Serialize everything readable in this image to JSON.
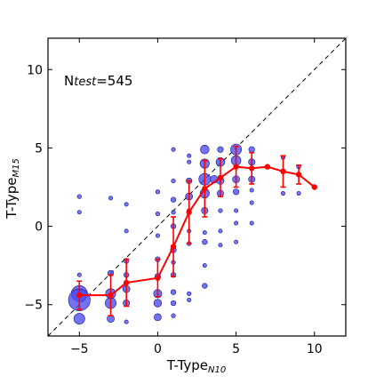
{
  "chart_data": {
    "type": "scatter",
    "xlabel_main": "T-Type",
    "xlabel_sub": "N10",
    "ylabel_main": "T-Type",
    "ylabel_sub": "M15",
    "annotation": {
      "n": "N",
      "sub": "test",
      "value": "=545"
    },
    "xlim": [
      -7,
      12
    ],
    "ylim": [
      -7,
      12
    ],
    "xticks": [
      -5,
      0,
      5,
      10
    ],
    "yticks": [
      -5,
      0,
      5,
      10
    ],
    "xtick_labels": [
      "−5",
      "0",
      "5",
      "10"
    ],
    "ytick_labels": [
      "−5",
      "0",
      "5",
      "10"
    ],
    "identity_line": true,
    "colors": {
      "points": "#4a4af0",
      "points_edge": "#1a1a8a",
      "mean": "#ff0000",
      "identity": "#000000"
    },
    "points": [
      {
        "x": -5,
        "y": 1.9,
        "n": 2
      },
      {
        "x": -5,
        "y": 0.9,
        "n": 1
      },
      {
        "x": -5,
        "y": -3.1,
        "n": 1
      },
      {
        "x": -5,
        "y": -4.3,
        "n": 30
      },
      {
        "x": -5,
        "y": -4.7,
        "n": 55
      },
      {
        "x": -5,
        "y": -5.9,
        "n": 14
      },
      {
        "x": -3,
        "y": 1.8,
        "n": 1
      },
      {
        "x": -3,
        "y": -3.0,
        "n": 4
      },
      {
        "x": -3,
        "y": -4.3,
        "n": 12
      },
      {
        "x": -3,
        "y": -4.9,
        "n": 14
      },
      {
        "x": -3,
        "y": -5.9,
        "n": 6
      },
      {
        "x": -2,
        "y": 1.4,
        "n": 1
      },
      {
        "x": -2,
        "y": -0.3,
        "n": 1
      },
      {
        "x": -2,
        "y": -2.2,
        "n": 3
      },
      {
        "x": -2,
        "y": -3.1,
        "n": 3
      },
      {
        "x": -2,
        "y": -4.0,
        "n": 6
      },
      {
        "x": -2,
        "y": -4.9,
        "n": 5
      },
      {
        "x": -2,
        "y": -6.1,
        "n": 1
      },
      {
        "x": 0,
        "y": 2.2,
        "n": 2
      },
      {
        "x": 0,
        "y": 0.8,
        "n": 2
      },
      {
        "x": 0,
        "y": -0.6,
        "n": 1
      },
      {
        "x": 0,
        "y": -2.1,
        "n": 3
      },
      {
        "x": 0,
        "y": -3.2,
        "n": 4
      },
      {
        "x": 0,
        "y": -4.3,
        "n": 8
      },
      {
        "x": 0,
        "y": -4.9,
        "n": 7
      },
      {
        "x": 0,
        "y": -5.8,
        "n": 6
      },
      {
        "x": 1,
        "y": 4.9,
        "n": 1
      },
      {
        "x": 1,
        "y": 2.9,
        "n": 2
      },
      {
        "x": 1,
        "y": 1.7,
        "n": 3
      },
      {
        "x": 1,
        "y": 0.9,
        "n": 2
      },
      {
        "x": 1,
        "y": 0.0,
        "n": 3
      },
      {
        "x": 1,
        "y": -1.5,
        "n": 4
      },
      {
        "x": 1,
        "y": -2.3,
        "n": 2
      },
      {
        "x": 1,
        "y": -3.1,
        "n": 3
      },
      {
        "x": 1,
        "y": -4.2,
        "n": 3
      },
      {
        "x": 1,
        "y": -4.9,
        "n": 3
      },
      {
        "x": 1,
        "y": -5.7,
        "n": 2
      },
      {
        "x": 2,
        "y": 4.5,
        "n": 1
      },
      {
        "x": 2,
        "y": 4.1,
        "n": 1
      },
      {
        "x": 2,
        "y": 2.9,
        "n": 4
      },
      {
        "x": 2,
        "y": 1.9,
        "n": 6
      },
      {
        "x": 2,
        "y": 1.0,
        "n": 2
      },
      {
        "x": 2,
        "y": -0.3,
        "n": 1
      },
      {
        "x": 2,
        "y": -1.1,
        "n": 2
      },
      {
        "x": 2,
        "y": -4.3,
        "n": 2
      },
      {
        "x": 2,
        "y": -4.7,
        "n": 1
      },
      {
        "x": 3,
        "y": 4.9,
        "n": 9
      },
      {
        "x": 3,
        "y": 4.0,
        "n": 10
      },
      {
        "x": 3,
        "y": 3.0,
        "n": 16
      },
      {
        "x": 3,
        "y": 2.1,
        "n": 10
      },
      {
        "x": 3,
        "y": 1.0,
        "n": 5
      },
      {
        "x": 3,
        "y": -0.4,
        "n": 1
      },
      {
        "x": 3,
        "y": -1.0,
        "n": 3
      },
      {
        "x": 3,
        "y": -2.5,
        "n": 1
      },
      {
        "x": 3,
        "y": -3.8,
        "n": 3
      },
      {
        "x": 3.6,
        "y": 3.0,
        "n": 7
      },
      {
        "x": 4,
        "y": 4.9,
        "n": 4
      },
      {
        "x": 4,
        "y": 4.1,
        "n": 9
      },
      {
        "x": 4,
        "y": 2.9,
        "n": 6
      },
      {
        "x": 4,
        "y": 2.1,
        "n": 5
      },
      {
        "x": 4,
        "y": 1.0,
        "n": 2
      },
      {
        "x": 4,
        "y": -0.3,
        "n": 1
      },
      {
        "x": 4,
        "y": -1.2,
        "n": 1
      },
      {
        "x": 5,
        "y": 4.9,
        "n": 14
      },
      {
        "x": 5,
        "y": 4.2,
        "n": 11
      },
      {
        "x": 5,
        "y": 3.0,
        "n": 6
      },
      {
        "x": 5,
        "y": 2.2,
        "n": 4
      },
      {
        "x": 5,
        "y": 1.0,
        "n": 1
      },
      {
        "x": 5,
        "y": 0.2,
        "n": 1
      },
      {
        "x": 5,
        "y": -1.0,
        "n": 1
      },
      {
        "x": 6,
        "y": 4.9,
        "n": 4
      },
      {
        "x": 6,
        "y": 4.1,
        "n": 5
      },
      {
        "x": 6,
        "y": 3.0,
        "n": 5
      },
      {
        "x": 6,
        "y": 2.3,
        "n": 1
      },
      {
        "x": 6,
        "y": 1.5,
        "n": 1
      },
      {
        "x": 6,
        "y": 0.2,
        "n": 1
      },
      {
        "x": 8,
        "y": 4.4,
        "n": 2
      },
      {
        "x": 8,
        "y": 2.1,
        "n": 1
      },
      {
        "x": 9,
        "y": 3.8,
        "n": 2
      },
      {
        "x": 9,
        "y": 2.1,
        "n": 1
      }
    ],
    "mean_line": {
      "x": [
        -5,
        -3,
        -2,
        0,
        1,
        2,
        3,
        4,
        5,
        6,
        7,
        8,
        9,
        10
      ],
      "y": [
        -4.4,
        -4.4,
        -3.6,
        -3.3,
        -1.3,
        0.9,
        2.4,
        3.1,
        3.8,
        3.7,
        3.8,
        3.5,
        3.3,
        2.5
      ],
      "err": [
        0.9,
        1.3,
        1.5,
        1.2,
        1.9,
        2.0,
        1.8,
        1.2,
        1.3,
        1.0,
        0.0,
        1.0,
        0.6,
        0.0
      ]
    }
  }
}
